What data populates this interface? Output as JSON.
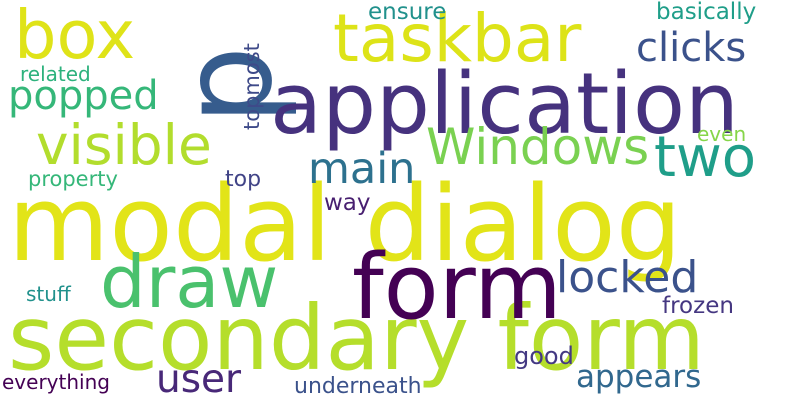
{
  "words": [
    {
      "text": "modal dialog",
      "color": "#e2e418"
    },
    {
      "text": "secondary form",
      "color": "#b5de2b"
    },
    {
      "text": "application",
      "color": "#46327e"
    },
    {
      "text": "p",
      "color": "#365c8d"
    },
    {
      "text": "form",
      "color": "#440154"
    },
    {
      "text": "taskbar",
      "color": "#dde318"
    },
    {
      "text": "draw",
      "color": "#4ac16d"
    },
    {
      "text": "box",
      "color": "#dfe318"
    },
    {
      "text": "visible",
      "color": "#b2dd2d"
    },
    {
      "text": "Windows",
      "color": "#7ad151"
    },
    {
      "text": "two",
      "color": "#1f9e89"
    },
    {
      "text": "main",
      "color": "#2d718e"
    },
    {
      "text": "popped",
      "color": "#35b779"
    },
    {
      "text": "clicks",
      "color": "#3b528b"
    },
    {
      "text": "locked",
      "color": "#3b528b"
    },
    {
      "text": "user",
      "color": "#482878"
    },
    {
      "text": "appears",
      "color": "#31688e"
    },
    {
      "text": "ensure",
      "color": "#21918c"
    },
    {
      "text": "basically",
      "color": "#1f9e89"
    },
    {
      "text": "related",
      "color": "#2db27d"
    },
    {
      "text": "topmost",
      "color": "#3e4a89"
    },
    {
      "text": "even",
      "color": "#86d549"
    },
    {
      "text": "property",
      "color": "#35b779"
    },
    {
      "text": "top",
      "color": "#414487"
    },
    {
      "text": "way",
      "color": "#481f70"
    },
    {
      "text": "stuff",
      "color": "#21918c"
    },
    {
      "text": "frozen",
      "color": "#453781"
    },
    {
      "text": "good",
      "color": "#443983"
    },
    {
      "text": "everything",
      "color": "#440154"
    },
    {
      "text": "underneath",
      "color": "#3b528b"
    }
  ]
}
